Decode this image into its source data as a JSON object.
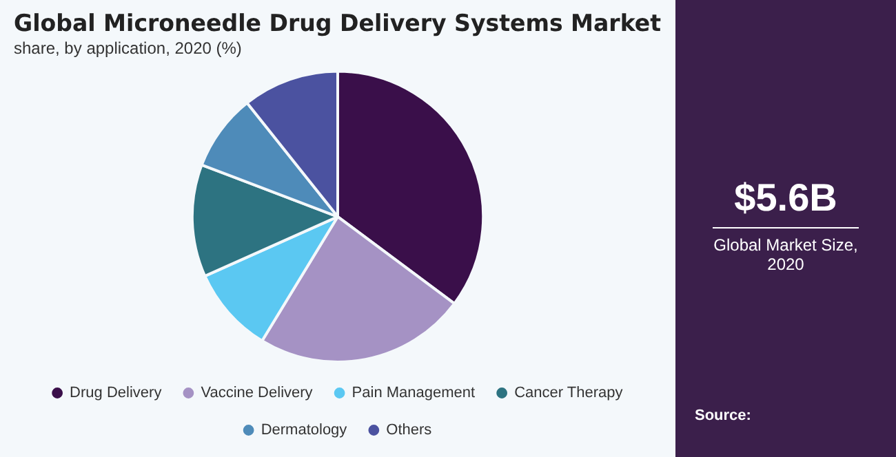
{
  "chart_data": {
    "type": "pie",
    "title": "Global Microneedle Drug Delivery Systems Market",
    "subtitle": "share, by application, 2020 (%)",
    "categories": [
      "Drug Delivery",
      "Vaccine Delivery",
      "Pain Management",
      "Cancer Therapy",
      "Dermatology",
      "Others"
    ],
    "values": [
      35.2,
      23.5,
      9.6,
      12.5,
      8.5,
      10.7
    ],
    "colors": [
      "#3a0f4a",
      "#a592c4",
      "#5bc8f2",
      "#2d7381",
      "#4e8bb9",
      "#4b52a0"
    ],
    "legend": "bottom",
    "annotations": [
      "$5.6B",
      "Global Market Size, 2020",
      "Source:"
    ]
  }
}
